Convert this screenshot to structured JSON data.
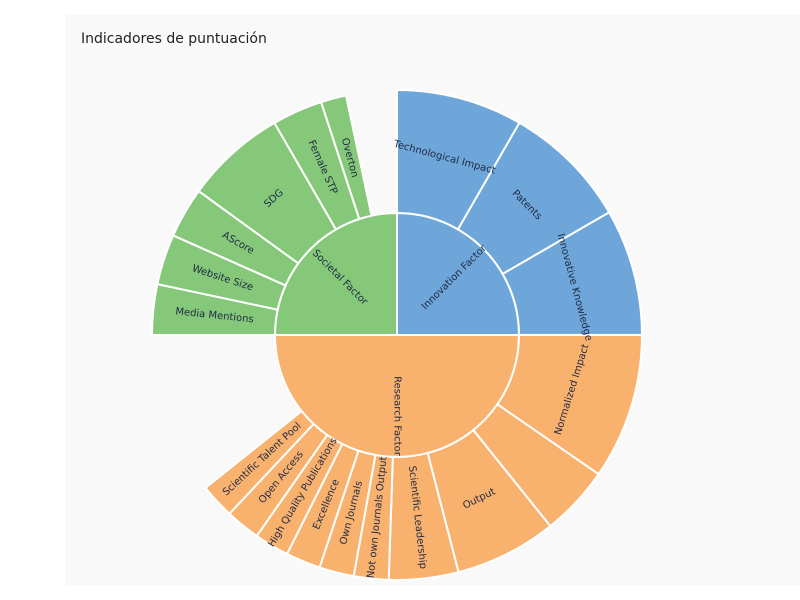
{
  "chart_data": {
    "type": "sunburst",
    "title": "Indicadores de puntuación",
    "colors": {
      "Innovation Factor": "#6ea6da",
      "Research Factor": "#f9b16e",
      "Societal Factor": "#86c879"
    },
    "rings": [
      {
        "name": "Innovation Factor",
        "value": 0.25,
        "children": [
          {
            "name": "Technological Impact",
            "value": 0.0833
          },
          {
            "name": "Patents",
            "value": 0.0833
          },
          {
            "name": "Innovative Knowledge",
            "value": 0.0833
          }
        ]
      },
      {
        "name": "Research Factor",
        "value": 0.5,
        "children": [
          {
            "name": "Normalized Impact",
            "value": 0.0962
          },
          {
            "name": "",
            "value": 0.0462
          },
          {
            "name": "Output",
            "value": 0.0672
          },
          {
            "name": "Scientific Leadership",
            "value": 0.0458
          },
          {
            "name": "Not own Journals Output",
            "value": 0.0229
          },
          {
            "name": "Own Journals",
            "value": 0.0229
          },
          {
            "name": "Excellence",
            "value": 0.0229
          },
          {
            "name": "High Quality Publications",
            "value": 0.0229
          },
          {
            "name": "Open Access",
            "value": 0.0229
          },
          {
            "name": "Scientific Talent Pool",
            "value": 0.0229
          }
        ]
      },
      {
        "name": "Societal Factor",
        "value": 0.25,
        "children": [
          {
            "name": "Media Mentions",
            "value": 0.0333
          },
          {
            "name": "Website Size",
            "value": 0.0333
          },
          {
            "name": "AScore",
            "value": 0.0333
          },
          {
            "name": "SDG",
            "value": 0.0667
          },
          {
            "name": "Female STP",
            "value": 0.0333
          },
          {
            "name": "Overton",
            "value": 0.0167
          }
        ]
      }
    ]
  }
}
